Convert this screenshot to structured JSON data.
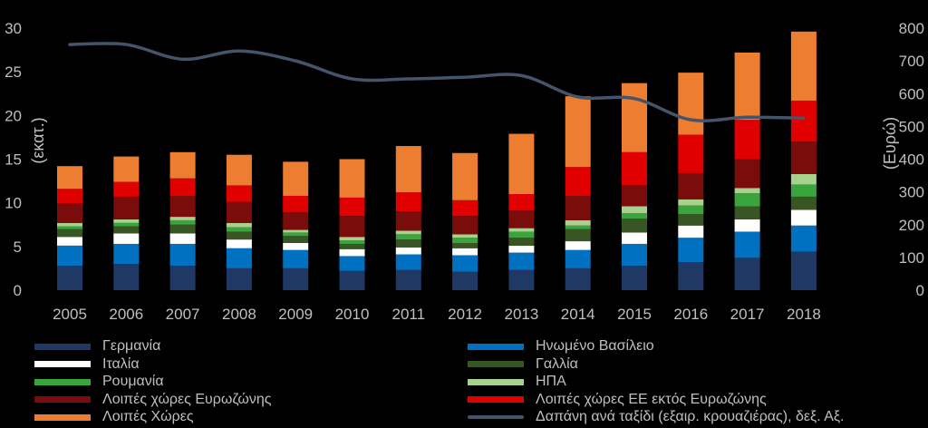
{
  "chart_data": {
    "type": "bar",
    "stacked": true,
    "categories": [
      "2005",
      "2006",
      "2007",
      "2008",
      "2009",
      "2010",
      "2011",
      "2012",
      "2013",
      "2014",
      "2015",
      "2016",
      "2017",
      "2018"
    ],
    "ylabel": "(εκατ.)",
    "ylim": [
      0,
      30
    ],
    "yticks": [
      0,
      5,
      10,
      15,
      20,
      25,
      30
    ],
    "y2label": "(Ευρώ)",
    "y2lim": [
      0,
      800
    ],
    "y2ticks": [
      0,
      100,
      200,
      300,
      400,
      500,
      600,
      700,
      800
    ],
    "grid": false,
    "legend_position": "bottom",
    "series": [
      {
        "name": "Γερμανία",
        "color": "#1f3864",
        "values": [
          2.8,
          3.0,
          2.8,
          2.5,
          2.5,
          2.2,
          2.3,
          2.1,
          2.3,
          2.5,
          2.8,
          3.2,
          3.7,
          4.4
        ]
      },
      {
        "name": "Ηνωμένο Βασίλειο",
        "color": "#0070c0",
        "values": [
          2.3,
          2.3,
          2.5,
          2.3,
          2.1,
          1.7,
          1.8,
          1.9,
          2.0,
          2.1,
          2.5,
          2.8,
          3.0,
          3.0
        ]
      },
      {
        "name": "Ιταλία",
        "color": "#ffffff",
        "values": [
          1.0,
          1.2,
          1.2,
          1.0,
          0.8,
          0.8,
          0.8,
          0.8,
          0.8,
          1.0,
          1.3,
          1.4,
          1.4,
          1.8
        ]
      },
      {
        "name": "Γαλλία",
        "color": "#375623",
        "values": [
          0.9,
          0.8,
          1.0,
          0.9,
          0.8,
          0.6,
          0.9,
          0.6,
          0.9,
          1.4,
          1.6,
          1.3,
          1.5,
          1.5
        ]
      },
      {
        "name": "Ρουμανία",
        "color": "#3aa53d",
        "values": [
          0.3,
          0.4,
          0.5,
          0.5,
          0.4,
          0.4,
          0.6,
          0.6,
          0.7,
          0.4,
          0.6,
          1.0,
          1.5,
          1.4
        ]
      },
      {
        "name": "ΗΠΑ",
        "color": "#a9d18e",
        "values": [
          0.4,
          0.4,
          0.4,
          0.5,
          0.3,
          0.4,
          0.4,
          0.4,
          0.4,
          0.6,
          0.8,
          0.7,
          0.6,
          1.2
        ]
      },
      {
        "name": "Λοιπές χώρες Ευρωζώνης",
        "color": "#7b0c0c",
        "values": [
          2.2,
          2.6,
          2.4,
          2.4,
          2.0,
          2.4,
          2.2,
          2.1,
          2.0,
          2.8,
          2.4,
          3.0,
          3.3,
          3.7
        ]
      },
      {
        "name": "Λοιπές χώρες ΕΕ  εκτός Ευρωζώνης",
        "color": "#e00000",
        "values": [
          1.7,
          1.7,
          2.0,
          1.9,
          1.9,
          2.1,
          2.2,
          1.8,
          1.9,
          3.3,
          3.8,
          4.4,
          4.5,
          4.7
        ]
      },
      {
        "name": "Λοιπές Χώρες",
        "color": "#ed7d31",
        "values": [
          2.6,
          2.9,
          3.0,
          3.5,
          3.9,
          4.4,
          5.3,
          5.4,
          6.9,
          8.1,
          7.9,
          7.1,
          7.7,
          7.9
        ]
      }
    ],
    "line_series": {
      "name": "Δαπάνη ανά ταξίδι (εξαιρ. κρουαζιέρας), δεξ. Αξ.",
      "color": "#44546a",
      "axis": "right",
      "values": [
        750,
        750,
        705,
        730,
        700,
        645,
        645,
        650,
        655,
        590,
        585,
        520,
        528,
        525
      ]
    }
  }
}
